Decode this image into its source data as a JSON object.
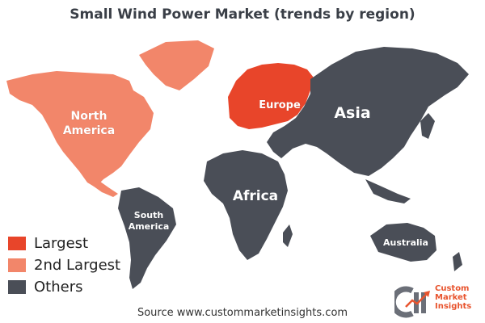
{
  "title": "Small Wind Power Market (trends by region)",
  "colors": {
    "largest": "#e8452a",
    "second_largest": "#f2866a",
    "others": "#4a4e57"
  },
  "regions": {
    "north_america": {
      "label_line1": "North",
      "label_line2": "America",
      "category": "second_largest"
    },
    "europe": {
      "label": "Europe",
      "category": "largest"
    },
    "asia": {
      "label": "Asia",
      "category": "others"
    },
    "africa": {
      "label": "Africa",
      "category": "others"
    },
    "south_america": {
      "label_line1": "South",
      "label_line2": "America",
      "category": "others"
    },
    "australia": {
      "label": "Australia",
      "category": "others"
    }
  },
  "legend": [
    {
      "label": "Largest",
      "color": "#e8452a"
    },
    {
      "label": "2nd Largest",
      "color": "#f2866a"
    },
    {
      "label": "Others",
      "color": "#4a4e57"
    }
  ],
  "source": "Source www.custommarketinsights.com",
  "logo": {
    "line1": "Custom",
    "line2": "Market",
    "line3": "Insights"
  }
}
